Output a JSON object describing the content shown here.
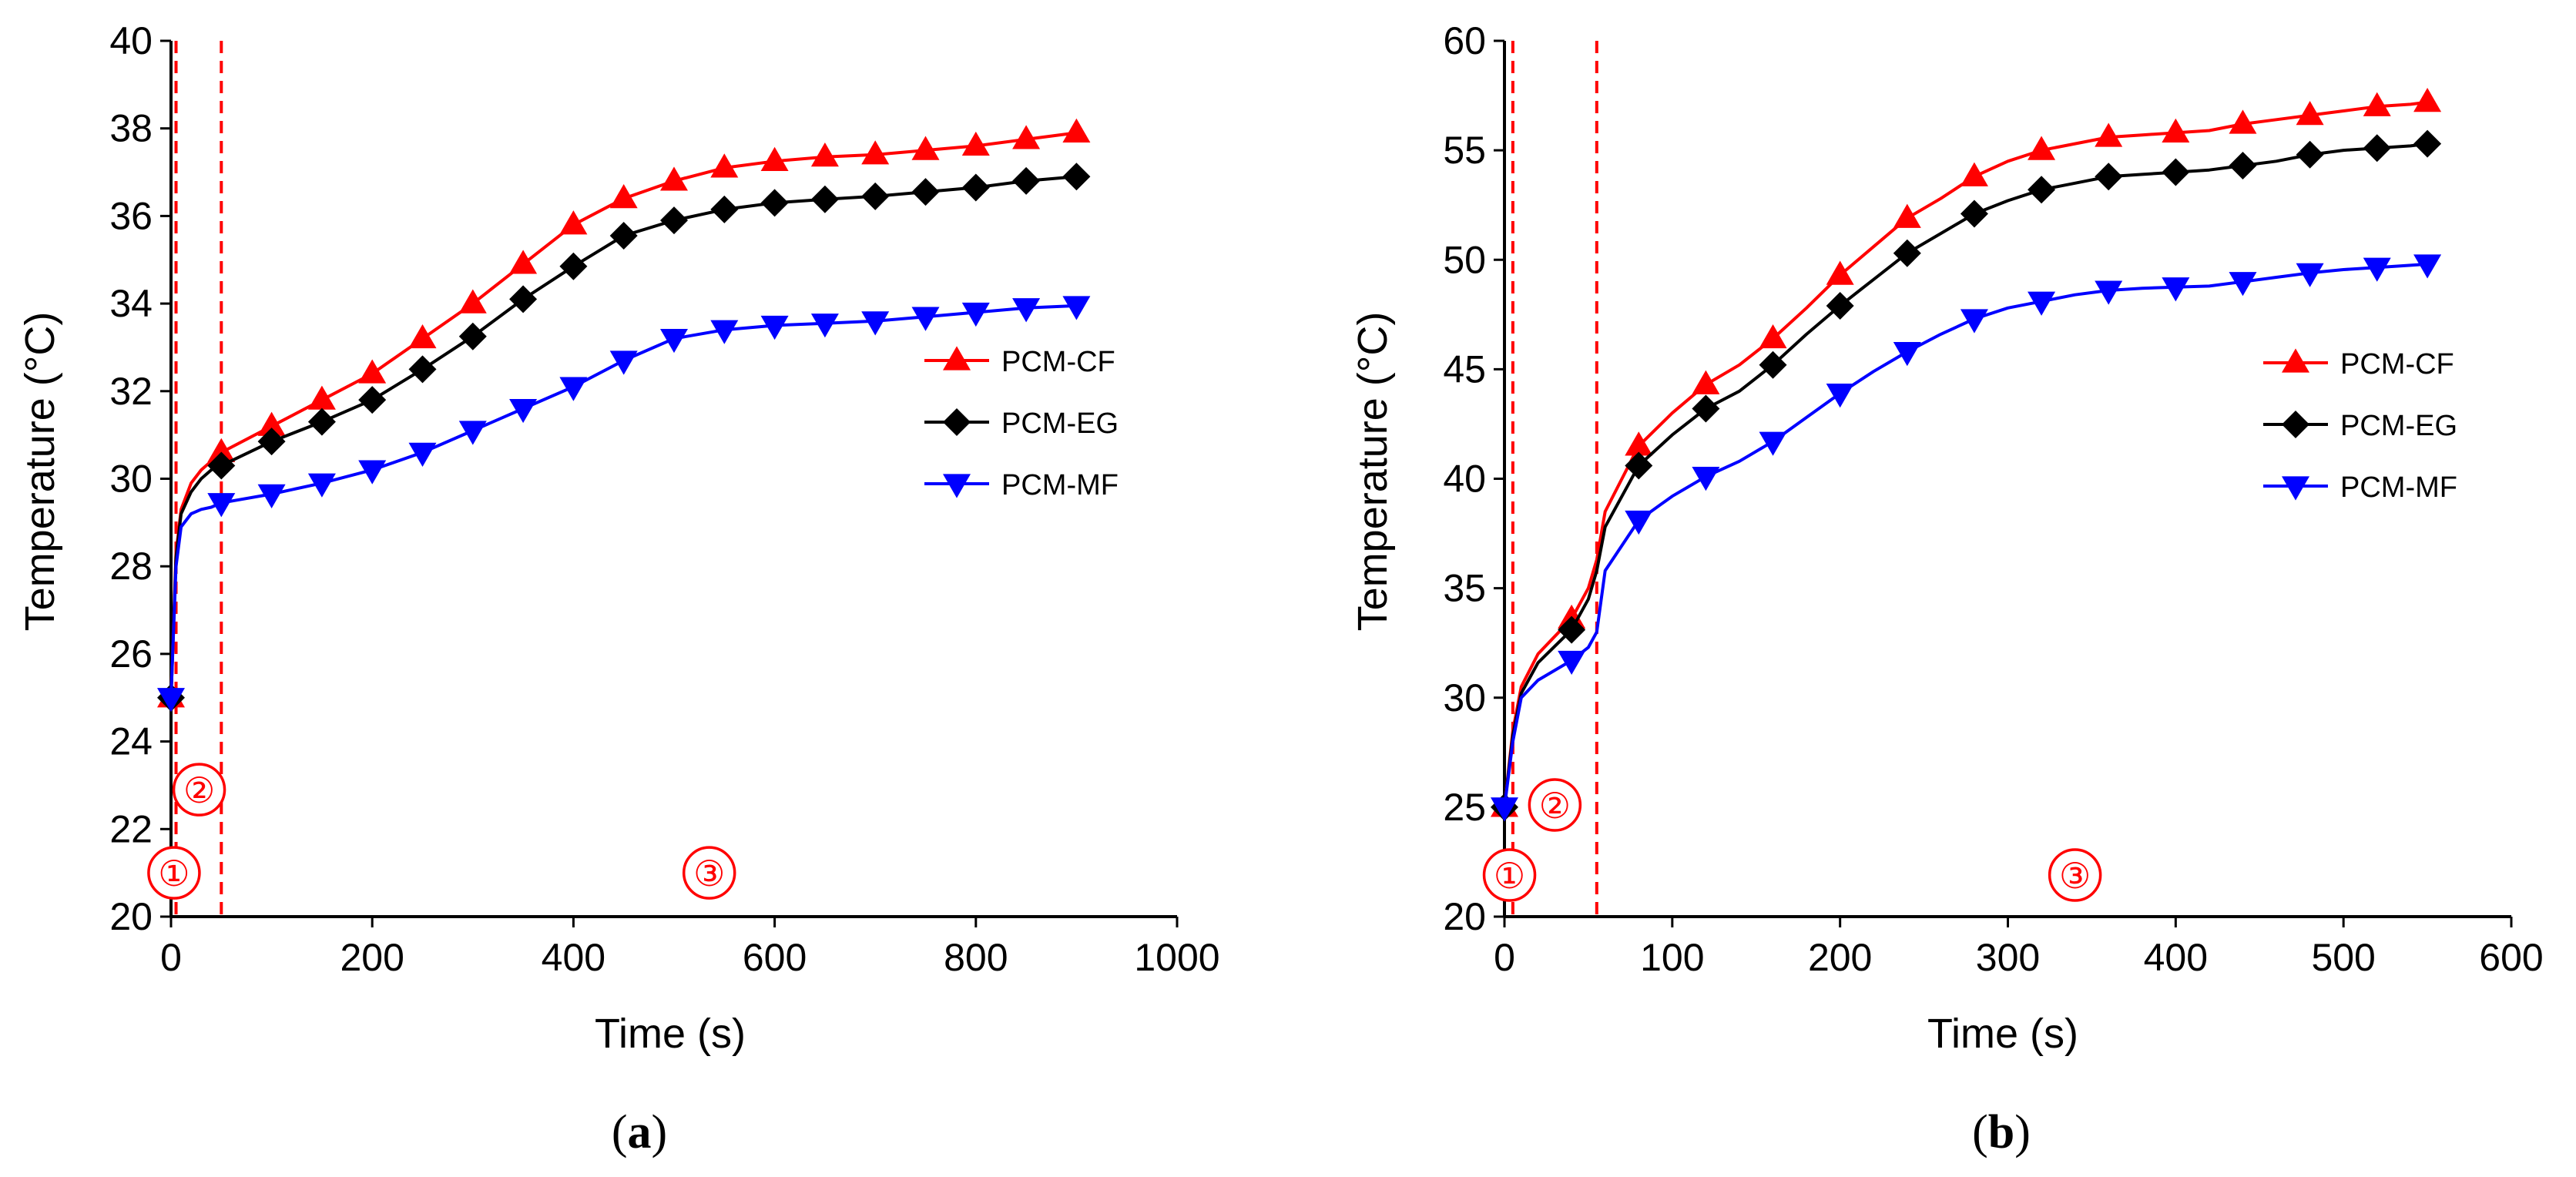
{
  "colors": {
    "red": "#ff0000",
    "black": "#000000",
    "blue": "#0000ff"
  },
  "chart_data": [
    {
      "type": "line",
      "panel_label_prefix": "(",
      "panel_label_letter": "a",
      "panel_label_suffix": ")",
      "xlabel": "Time (s)",
      "ylabel": "Temperature (°C)",
      "xlim": [
        0,
        1000
      ],
      "ylim": [
        20,
        40
      ],
      "xticks": [
        "0",
        "200",
        "400",
        "600",
        "800",
        "1000"
      ],
      "xtick_values": [
        0,
        200,
        400,
        600,
        800,
        1000
      ],
      "yticks": [
        "20",
        "22",
        "24",
        "26",
        "28",
        "30",
        "32",
        "34",
        "36",
        "38",
        "40"
      ],
      "ytick_values": [
        20,
        22,
        24,
        26,
        28,
        30,
        32,
        34,
        36,
        38,
        40
      ],
      "legend_position": "right-middle",
      "vlines": [
        5,
        50
      ],
      "region_labels": [
        {
          "text": "①",
          "x": 3,
          "y": 21.0
        },
        {
          "text": "②",
          "x": 28,
          "y": 22.9
        },
        {
          "text": "③",
          "x": 535,
          "y": 21.0
        }
      ],
      "series": [
        {
          "name": "PCM-CF",
          "color": "#ff0000",
          "marker": "triangle-up",
          "x": [
            0,
            5,
            10,
            20,
            30,
            40,
            50,
            100,
            150,
            200,
            250,
            300,
            350,
            400,
            450,
            500,
            550,
            600,
            650,
            700,
            750,
            800,
            850,
            900
          ],
          "y": [
            25.0,
            28.3,
            29.3,
            29.9,
            30.2,
            30.4,
            30.6,
            31.2,
            31.8,
            32.4,
            33.2,
            34.0,
            34.9,
            35.8,
            36.4,
            36.8,
            37.1,
            37.25,
            37.35,
            37.4,
            37.5,
            37.6,
            37.75,
            37.9
          ],
          "marker_x": [
            0,
            50,
            100,
            150,
            200,
            250,
            300,
            350,
            400,
            450,
            500,
            550,
            600,
            650,
            700,
            750,
            800,
            850,
            900
          ]
        },
        {
          "name": "PCM-EG",
          "color": "#000000",
          "marker": "diamond",
          "x": [
            0,
            5,
            10,
            20,
            30,
            40,
            50,
            100,
            150,
            200,
            250,
            300,
            350,
            400,
            450,
            500,
            550,
            600,
            650,
            700,
            750,
            800,
            850,
            900
          ],
          "y": [
            25.0,
            28.2,
            29.2,
            29.7,
            30.0,
            30.2,
            30.3,
            30.85,
            31.3,
            31.8,
            32.5,
            33.25,
            34.1,
            34.85,
            35.55,
            35.9,
            36.15,
            36.3,
            36.38,
            36.45,
            36.55,
            36.65,
            36.8,
            36.9
          ],
          "marker_x": [
            0,
            50,
            100,
            150,
            200,
            250,
            300,
            350,
            400,
            450,
            500,
            550,
            600,
            650,
            700,
            750,
            800,
            850,
            900
          ]
        },
        {
          "name": "PCM-MF",
          "color": "#0000ff",
          "marker": "triangle-down",
          "x": [
            0,
            5,
            10,
            20,
            30,
            40,
            50,
            100,
            150,
            200,
            250,
            300,
            350,
            400,
            450,
            500,
            550,
            600,
            650,
            700,
            750,
            800,
            850,
            900
          ],
          "y": [
            25.0,
            28.0,
            28.9,
            29.2,
            29.3,
            29.35,
            29.45,
            29.65,
            29.9,
            30.2,
            30.6,
            31.1,
            31.6,
            32.1,
            32.7,
            33.2,
            33.4,
            33.5,
            33.55,
            33.6,
            33.7,
            33.8,
            33.9,
            33.95
          ],
          "marker_x": [
            0,
            50,
            100,
            150,
            200,
            250,
            300,
            350,
            400,
            450,
            500,
            550,
            600,
            650,
            700,
            750,
            800,
            850,
            900
          ]
        }
      ]
    },
    {
      "type": "line",
      "panel_label_prefix": "(",
      "panel_label_letter": "b",
      "panel_label_suffix": ")",
      "xlabel": "Time (s)",
      "ylabel": "Temperature (°C)",
      "xlim": [
        0,
        600
      ],
      "ylim": [
        20,
        60
      ],
      "xticks": [
        "0",
        "100",
        "200",
        "300",
        "400",
        "500",
        "600"
      ],
      "xtick_values": [
        0,
        100,
        200,
        300,
        400,
        500,
        600
      ],
      "yticks": [
        "20",
        "25",
        "30",
        "35",
        "40",
        "45",
        "50",
        "55",
        "60"
      ],
      "ytick_values": [
        20,
        25,
        30,
        35,
        40,
        45,
        50,
        55,
        60
      ],
      "legend_position": "right-middle",
      "vlines": [
        5,
        55
      ],
      "region_labels": [
        {
          "text": "①",
          "x": 3,
          "y": 21.9
        },
        {
          "text": "②",
          "x": 30,
          "y": 25.1
        },
        {
          "text": "③",
          "x": 340,
          "y": 21.9
        }
      ],
      "series": [
        {
          "name": "PCM-CF",
          "color": "#ff0000",
          "marker": "triangle-up",
          "x": [
            0,
            5,
            10,
            20,
            40,
            50,
            55,
            60,
            80,
            100,
            120,
            140,
            160,
            180,
            200,
            220,
            240,
            260,
            280,
            300,
            320,
            340,
            360,
            380,
            400,
            420,
            440,
            460,
            480,
            500,
            520,
            540,
            550
          ],
          "y": [
            25.0,
            28.5,
            30.5,
            32.0,
            33.6,
            35.0,
            36.3,
            38.5,
            41.5,
            43.0,
            44.3,
            45.2,
            46.4,
            47.8,
            49.3,
            50.6,
            51.9,
            52.8,
            53.8,
            54.5,
            55.0,
            55.3,
            55.6,
            55.7,
            55.8,
            55.9,
            56.2,
            56.4,
            56.6,
            56.8,
            57.0,
            57.1,
            57.2
          ],
          "marker_x": [
            0,
            40,
            80,
            120,
            160,
            200,
            240,
            280,
            320,
            360,
            400,
            440,
            480,
            520,
            550
          ]
        },
        {
          "name": "PCM-EG",
          "color": "#000000",
          "marker": "diamond",
          "x": [
            0,
            5,
            10,
            20,
            40,
            50,
            55,
            60,
            80,
            100,
            120,
            140,
            160,
            180,
            200,
            220,
            240,
            260,
            280,
            300,
            320,
            340,
            360,
            380,
            400,
            420,
            440,
            460,
            480,
            500,
            520,
            540,
            550
          ],
          "y": [
            25.0,
            28.3,
            30.2,
            31.6,
            33.1,
            34.5,
            35.8,
            37.8,
            40.6,
            42.0,
            43.2,
            44.0,
            45.2,
            46.6,
            47.9,
            49.1,
            50.3,
            51.2,
            52.1,
            52.7,
            53.2,
            53.5,
            53.8,
            53.9,
            54.0,
            54.1,
            54.3,
            54.5,
            54.8,
            55.0,
            55.1,
            55.2,
            55.3
          ],
          "marker_x": [
            0,
            40,
            80,
            120,
            160,
            200,
            240,
            280,
            320,
            360,
            400,
            440,
            480,
            520,
            550
          ]
        },
        {
          "name": "PCM-MF",
          "color": "#0000ff",
          "marker": "triangle-down",
          "x": [
            0,
            5,
            10,
            20,
            40,
            50,
            55,
            60,
            80,
            100,
            120,
            140,
            160,
            180,
            200,
            220,
            240,
            260,
            280,
            300,
            320,
            340,
            360,
            380,
            400,
            420,
            440,
            460,
            480,
            500,
            520,
            540,
            550
          ],
          "y": [
            25.0,
            28.0,
            30.0,
            30.8,
            31.7,
            32.3,
            33.0,
            35.8,
            38.1,
            39.2,
            40.1,
            40.8,
            41.7,
            42.8,
            43.9,
            44.9,
            45.8,
            46.6,
            47.3,
            47.8,
            48.1,
            48.4,
            48.6,
            48.7,
            48.75,
            48.8,
            49.0,
            49.2,
            49.4,
            49.55,
            49.65,
            49.75,
            49.8
          ],
          "marker_x": [
            0,
            40,
            80,
            120,
            160,
            200,
            240,
            280,
            320,
            360,
            400,
            440,
            480,
            520,
            550
          ]
        }
      ]
    }
  ]
}
